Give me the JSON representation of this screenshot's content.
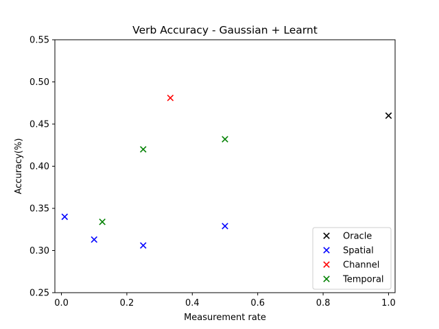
{
  "chart_data": {
    "type": "scatter",
    "title": "Verb Accuracy - Gaussian + Learnt",
    "xlabel": "Measurement rate",
    "ylabel": "Accuracy(%)",
    "xlim": [
      -0.02,
      1.02
    ],
    "ylim": [
      0.25,
      0.55
    ],
    "xticks": [
      0.0,
      0.2,
      0.4,
      0.6,
      0.8,
      1.0
    ],
    "xtick_labels": [
      "0.0",
      "0.2",
      "0.4",
      "0.6",
      "0.8",
      "1.0"
    ],
    "yticks": [
      0.25,
      0.3,
      0.35,
      0.4,
      0.45,
      0.5,
      0.55
    ],
    "ytick_labels": [
      "0.25",
      "0.30",
      "0.35",
      "0.40",
      "0.45",
      "0.50",
      "0.55"
    ],
    "grid": false,
    "legend_position": "lower-right",
    "series": [
      {
        "name": "Oracle",
        "color": "#000000",
        "marker": "x",
        "x": [
          1.0
        ],
        "y": [
          0.46
        ]
      },
      {
        "name": "Spatial",
        "color": "#0000ff",
        "marker": "x",
        "x": [
          0.01,
          0.1,
          0.25,
          0.5
        ],
        "y": [
          0.34,
          0.313,
          0.306,
          0.329
        ]
      },
      {
        "name": "Channel",
        "color": "#ff0000",
        "marker": "x",
        "x": [
          0.333
        ],
        "y": [
          0.481
        ]
      },
      {
        "name": "Temporal",
        "color": "#008000",
        "marker": "x",
        "x": [
          0.125,
          0.25,
          0.5
        ],
        "y": [
          0.334,
          0.42,
          0.432
        ]
      }
    ]
  }
}
